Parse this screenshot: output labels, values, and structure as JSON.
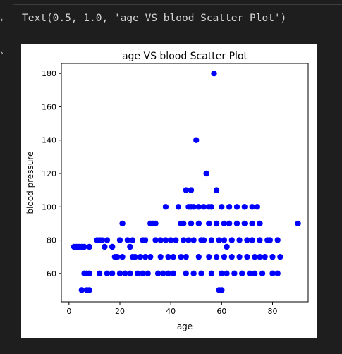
{
  "cell_output": {
    "repr_text": "Text(0.5, 1.0, 'age VS blood Scatter Plot')",
    "gutter_icon_1": "chevron-right-icon",
    "gutter_icon_2": "chevron-right-icon"
  },
  "chart_data": {
    "type": "scatter",
    "title": "age VS blood Scatter Plot",
    "xlabel": "age",
    "ylabel": "blood pressure",
    "xlim": [
      -3,
      94
    ],
    "ylim": [
      43,
      186
    ],
    "xticks": [
      "0",
      "20",
      "40",
      "60",
      "80"
    ],
    "yticks": [
      "60",
      "80",
      "100",
      "120",
      "140",
      "160",
      "180"
    ],
    "grid": false,
    "marker_color": "#0000ff",
    "points": [
      [
        2,
        76
      ],
      [
        3,
        76
      ],
      [
        4,
        76
      ],
      [
        5,
        76
      ],
      [
        6,
        76
      ],
      [
        8,
        76
      ],
      [
        6,
        60
      ],
      [
        7,
        60
      ],
      [
        8,
        60
      ],
      [
        5,
        50
      ],
      [
        7,
        50
      ],
      [
        8,
        50
      ],
      [
        11,
        80
      ],
      [
        12,
        80
      ],
      [
        13,
        80
      ],
      [
        15,
        80
      ],
      [
        14,
        76
      ],
      [
        17,
        76
      ],
      [
        12,
        60
      ],
      [
        15,
        60
      ],
      [
        17,
        60
      ],
      [
        18,
        70
      ],
      [
        19,
        70
      ],
      [
        20,
        60
      ],
      [
        21,
        90
      ],
      [
        20,
        80
      ],
      [
        21,
        70
      ],
      [
        22,
        60
      ],
      [
        23,
        80
      ],
      [
        24,
        76
      ],
      [
        24,
        60
      ],
      [
        25,
        70
      ],
      [
        25,
        80
      ],
      [
        26,
        70
      ],
      [
        27,
        60
      ],
      [
        28,
        70
      ],
      [
        29,
        60
      ],
      [
        29,
        80
      ],
      [
        30,
        70
      ],
      [
        30,
        80
      ],
      [
        31,
        60
      ],
      [
        32,
        90
      ],
      [
        33,
        90
      ],
      [
        34,
        90
      ],
      [
        32,
        70
      ],
      [
        34,
        80
      ],
      [
        35,
        60
      ],
      [
        36,
        70
      ],
      [
        36,
        80
      ],
      [
        37,
        60
      ],
      [
        38,
        100
      ],
      [
        38,
        80
      ],
      [
        39,
        70
      ],
      [
        39,
        60
      ],
      [
        40,
        80
      ],
      [
        41,
        70
      ],
      [
        41,
        60
      ],
      [
        42,
        80
      ],
      [
        43,
        100
      ],
      [
        44,
        90
      ],
      [
        45,
        90
      ],
      [
        44,
        70
      ],
      [
        45,
        80
      ],
      [
        46,
        60
      ],
      [
        46,
        70
      ],
      [
        47,
        80
      ],
      [
        46,
        110
      ],
      [
        48,
        110
      ],
      [
        47,
        100
      ],
      [
        48,
        100
      ],
      [
        49,
        100
      ],
      [
        48,
        90
      ],
      [
        49,
        80
      ],
      [
        49,
        60
      ],
      [
        50,
        140
      ],
      [
        51,
        100
      ],
      [
        51,
        90
      ],
      [
        51,
        70
      ],
      [
        52,
        80
      ],
      [
        52,
        60
      ],
      [
        53,
        100
      ],
      [
        53,
        80
      ],
      [
        54,
        120
      ],
      [
        55,
        100
      ],
      [
        55,
        90
      ],
      [
        55,
        70
      ],
      [
        56,
        100
      ],
      [
        56,
        80
      ],
      [
        56,
        60
      ],
      [
        57,
        180
      ],
      [
        58,
        110
      ],
      [
        58,
        90
      ],
      [
        58,
        70
      ],
      [
        59,
        80
      ],
      [
        59,
        50
      ],
      [
        60,
        50
      ],
      [
        60,
        60
      ],
      [
        60,
        100
      ],
      [
        61,
        90
      ],
      [
        61,
        80
      ],
      [
        61,
        70
      ],
      [
        62,
        60
      ],
      [
        62,
        76
      ],
      [
        63,
        100
      ],
      [
        63,
        90
      ],
      [
        64,
        80
      ],
      [
        64,
        70
      ],
      [
        65,
        60
      ],
      [
        66,
        90
      ],
      [
        66,
        100
      ],
      [
        67,
        80
      ],
      [
        67,
        70
      ],
      [
        68,
        60
      ],
      [
        69,
        90
      ],
      [
        69,
        100
      ],
      [
        70,
        80
      ],
      [
        70,
        70
      ],
      [
        71,
        60
      ],
      [
        72,
        100
      ],
      [
        72,
        90
      ],
      [
        72,
        80
      ],
      [
        73,
        70
      ],
      [
        73,
        60
      ],
      [
        74,
        100
      ],
      [
        75,
        90
      ],
      [
        75,
        80
      ],
      [
        75,
        70
      ],
      [
        76,
        60
      ],
      [
        77,
        70
      ],
      [
        78,
        80
      ],
      [
        79,
        80
      ],
      [
        80,
        60
      ],
      [
        80,
        70
      ],
      [
        82,
        80
      ],
      [
        82,
        60
      ],
      [
        83,
        70
      ],
      [
        90,
        90
      ]
    ]
  }
}
